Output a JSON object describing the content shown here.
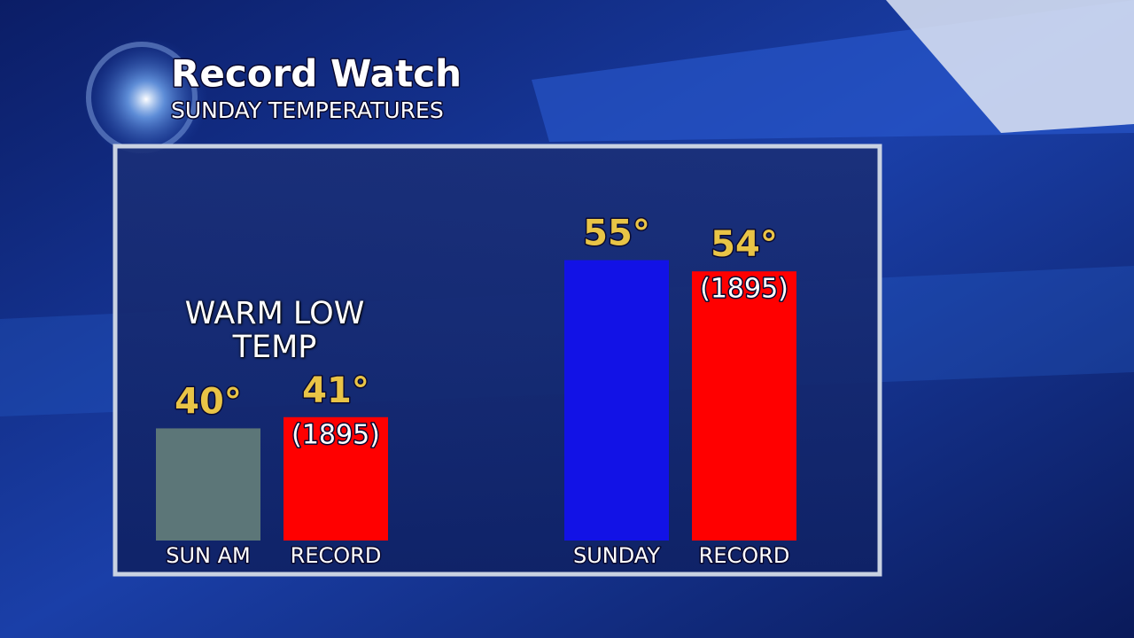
{
  "chart_data": {
    "type": "bar",
    "title": "Record Watch",
    "subtitle": "SUNDAY TEMPERATURES",
    "annotation": "WARM LOW TEMP",
    "categories": [
      "SUN AM",
      "RECORD",
      "SUNDAY",
      "RECORD"
    ],
    "values": [
      40,
      41,
      55,
      54
    ],
    "value_labels": [
      "40°",
      "41°",
      "55°",
      "54°"
    ],
    "year_labels": [
      null,
      "(1895)",
      null,
      "(1895)"
    ],
    "colors": [
      "#5c7678",
      "#ff0000",
      "#1212e6",
      "#ff0000"
    ],
    "ylim": [
      30,
      65
    ]
  }
}
